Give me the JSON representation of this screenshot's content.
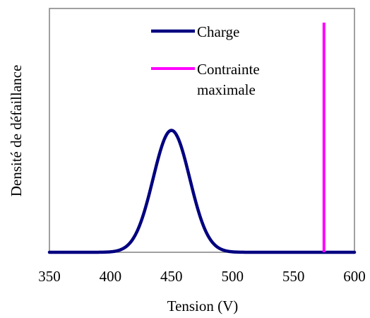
{
  "chart_data": {
    "type": "line",
    "title": "",
    "xlabel": "Tension (V)",
    "ylabel": "Densité de défaillance",
    "xlim": [
      350,
      600
    ],
    "ylim": [
      0,
      1.0
    ],
    "x_ticks": [
      "350",
      "400",
      "450",
      "500",
      "550",
      "600"
    ],
    "y_ticks_shown": false,
    "grid": false,
    "legend_position": "top-right",
    "series": [
      {
        "name": "Charge",
        "color": "#000080",
        "shape": "normal-distribution",
        "mean": 450,
        "std_dev": 15,
        "peak": 0.5,
        "x": [
          350,
          380,
          400,
          410,
          420,
          430,
          435,
          440,
          445,
          450,
          455,
          460,
          465,
          470,
          480,
          490,
          500,
          520,
          550,
          600
        ],
        "y": [
          0,
          0,
          0.002,
          0.014,
          0.068,
          0.205,
          0.303,
          0.401,
          0.473,
          0.5,
          0.473,
          0.401,
          0.303,
          0.205,
          0.068,
          0.014,
          0.002,
          0,
          0,
          0
        ]
      },
      {
        "name": "Contrainte maximale",
        "legend_lines": [
          "Contrainte",
          "maximale"
        ],
        "color": "#ff00ff",
        "shape": "vertical-line",
        "x": [
          575,
          575
        ],
        "y": [
          0,
          1.0
        ]
      }
    ]
  }
}
